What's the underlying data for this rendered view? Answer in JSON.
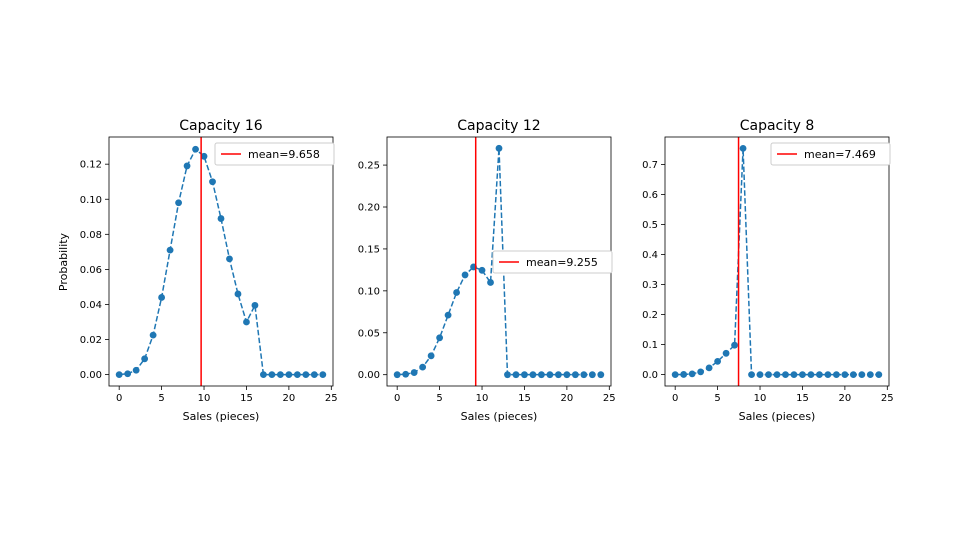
{
  "chart_data": [
    {
      "type": "line",
      "title": "Capacity 16",
      "xlabel": "Sales (pieces)",
      "ylabel": "Probability",
      "xlim": [
        -1.2,
        25.2
      ],
      "ylim": [
        -0.0065,
        0.1355
      ],
      "xticks": [
        0,
        5,
        10,
        15,
        20,
        25
      ],
      "yticks": [
        0.0,
        0.02,
        0.04,
        0.06,
        0.08,
        0.1,
        0.12
      ],
      "ytick_labels": [
        "0.00",
        "0.02",
        "0.04",
        "0.06",
        "0.08",
        "0.10",
        "0.12"
      ],
      "series": [
        {
          "name": "probability",
          "color": "#1f77b4",
          "style": "dashed-with-markers",
          "x": [
            0,
            1,
            2,
            3,
            4,
            5,
            6,
            7,
            8,
            9,
            10,
            11,
            12,
            13,
            14,
            15,
            16,
            17,
            18,
            19,
            20,
            21,
            22,
            23,
            24
          ],
          "values": [
            0.0,
            0.0005,
            0.0025,
            0.009,
            0.0225,
            0.044,
            0.071,
            0.098,
            0.119,
            0.1285,
            0.1245,
            0.11,
            0.089,
            0.066,
            0.046,
            0.03,
            0.0395,
            0,
            0,
            0,
            0,
            0,
            0,
            0,
            0
          ]
        }
      ],
      "mean": 9.658,
      "mean_color": "#ff0000",
      "legend_label": "mean=9.658",
      "legend_position": "upper right"
    },
    {
      "type": "line",
      "title": "Capacity 12",
      "xlabel": "Sales (pieces)",
      "ylabel": "",
      "xlim": [
        -1.2,
        25.2
      ],
      "ylim": [
        -0.0135,
        0.2835
      ],
      "xticks": [
        0,
        5,
        10,
        15,
        20,
        25
      ],
      "yticks": [
        0.0,
        0.05,
        0.1,
        0.15,
        0.2,
        0.25
      ],
      "ytick_labels": [
        "0.00",
        "0.05",
        "0.10",
        "0.15",
        "0.20",
        "0.25"
      ],
      "series": [
        {
          "name": "probability",
          "color": "#1f77b4",
          "style": "dashed-with-markers",
          "x": [
            0,
            1,
            2,
            3,
            4,
            5,
            6,
            7,
            8,
            9,
            10,
            11,
            12,
            13,
            14,
            15,
            16,
            17,
            18,
            19,
            20,
            21,
            22,
            23,
            24
          ],
          "values": [
            0.0,
            0.0005,
            0.0025,
            0.009,
            0.0225,
            0.044,
            0.071,
            0.098,
            0.119,
            0.1285,
            0.1245,
            0.11,
            0.27,
            0,
            0,
            0,
            0,
            0,
            0,
            0,
            0,
            0,
            0,
            0,
            0
          ]
        }
      ],
      "mean": 9.255,
      "mean_color": "#ff0000",
      "legend_label": "mean=9.255",
      "legend_position": "center right"
    },
    {
      "type": "line",
      "title": "Capacity 8",
      "xlabel": "Sales (pieces)",
      "ylabel": "",
      "xlim": [
        -1.2,
        25.2
      ],
      "ylim": [
        -0.038,
        0.792
      ],
      "xticks": [
        0,
        5,
        10,
        15,
        20,
        25
      ],
      "yticks": [
        0.0,
        0.1,
        0.2,
        0.3,
        0.4,
        0.5,
        0.6,
        0.7
      ],
      "ytick_labels": [
        "0.0",
        "0.1",
        "0.2",
        "0.3",
        "0.4",
        "0.5",
        "0.6",
        "0.7"
      ],
      "series": [
        {
          "name": "probability",
          "color": "#1f77b4",
          "style": "dashed-with-markers",
          "x": [
            0,
            1,
            2,
            3,
            4,
            5,
            6,
            7,
            8,
            9,
            10,
            11,
            12,
            13,
            14,
            15,
            16,
            17,
            18,
            19,
            20,
            21,
            22,
            23,
            24
          ],
          "values": [
            0.0,
            0.0005,
            0.0025,
            0.009,
            0.0225,
            0.044,
            0.071,
            0.098,
            0.754,
            0,
            0,
            0,
            0,
            0,
            0,
            0,
            0,
            0,
            0,
            0,
            0,
            0,
            0,
            0,
            0
          ]
        }
      ],
      "mean": 7.469,
      "mean_color": "#ff0000",
      "legend_label": "mean=7.469",
      "legend_position": "upper right"
    }
  ]
}
